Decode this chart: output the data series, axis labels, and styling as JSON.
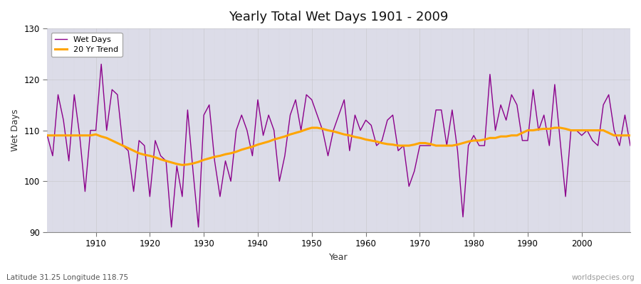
{
  "title": "Yearly Total Wet Days 1901 - 2009",
  "xlabel": "Year",
  "ylabel": "Wet Days",
  "subtitle_lat": "Latitude 31.25 Longitude 118.75",
  "watermark": "worldspecies.org",
  "line_color": "#8B008B",
  "trend_color": "#FFA500",
  "bg_color": "#DCDCE8",
  "fig_color": "#FFFFFF",
  "ylim": [
    90,
    130
  ],
  "xlim": [
    1901,
    2009
  ],
  "years": [
    1901,
    1902,
    1903,
    1904,
    1905,
    1906,
    1907,
    1908,
    1909,
    1910,
    1911,
    1912,
    1913,
    1914,
    1915,
    1916,
    1917,
    1918,
    1919,
    1920,
    1921,
    1922,
    1923,
    1924,
    1925,
    1926,
    1927,
    1928,
    1929,
    1930,
    1931,
    1932,
    1933,
    1934,
    1935,
    1936,
    1937,
    1938,
    1939,
    1940,
    1941,
    1942,
    1943,
    1944,
    1945,
    1946,
    1947,
    1948,
    1949,
    1950,
    1951,
    1952,
    1953,
    1954,
    1955,
    1956,
    1957,
    1958,
    1959,
    1960,
    1961,
    1962,
    1963,
    1964,
    1965,
    1966,
    1967,
    1968,
    1969,
    1970,
    1971,
    1972,
    1973,
    1974,
    1975,
    1976,
    1977,
    1978,
    1979,
    1980,
    1981,
    1982,
    1983,
    1984,
    1985,
    1986,
    1987,
    1988,
    1989,
    1990,
    1991,
    1992,
    1993,
    1994,
    1995,
    1996,
    1997,
    1998,
    1999,
    2000,
    2001,
    2002,
    2003,
    2004,
    2005,
    2006,
    2007,
    2008,
    2009
  ],
  "wet_days": [
    109,
    105,
    117,
    112,
    104,
    117,
    109,
    98,
    110,
    110,
    123,
    110,
    118,
    117,
    107,
    106,
    98,
    108,
    107,
    97,
    108,
    105,
    104,
    91,
    103,
    97,
    114,
    102,
    91,
    113,
    115,
    104,
    97,
    104,
    100,
    110,
    113,
    110,
    105,
    116,
    109,
    113,
    110,
    100,
    105,
    113,
    116,
    110,
    117,
    116,
    113,
    110,
    105,
    110,
    113,
    116,
    106,
    113,
    110,
    112,
    111,
    107,
    108,
    112,
    113,
    106,
    107,
    99,
    102,
    107,
    107,
    107,
    114,
    114,
    107,
    114,
    106,
    93,
    107,
    109,
    107,
    107,
    121,
    110,
    115,
    112,
    117,
    115,
    108,
    108,
    118,
    110,
    113,
    107,
    119,
    108,
    97,
    110,
    110,
    109,
    110,
    108,
    107,
    115,
    117,
    110,
    107,
    113,
    107
  ],
  "trend": [
    109.0,
    109.0,
    109.0,
    109.0,
    109.0,
    109.0,
    109.0,
    109.0,
    109.0,
    109.2,
    108.8,
    108.5,
    108.0,
    107.5,
    107.0,
    106.5,
    106.0,
    105.5,
    105.2,
    105.0,
    104.7,
    104.3,
    104.0,
    103.7,
    103.4,
    103.2,
    103.3,
    103.5,
    103.8,
    104.2,
    104.5,
    104.8,
    105.0,
    105.3,
    105.5,
    105.8,
    106.2,
    106.5,
    106.8,
    107.2,
    107.5,
    107.8,
    108.2,
    108.5,
    108.8,
    109.2,
    109.5,
    109.8,
    110.2,
    110.5,
    110.5,
    110.3,
    110.0,
    109.8,
    109.5,
    109.2,
    109.0,
    108.7,
    108.5,
    108.2,
    108.0,
    107.8,
    107.5,
    107.3,
    107.2,
    107.0,
    107.0,
    107.0,
    107.2,
    107.5,
    107.5,
    107.3,
    107.0,
    107.0,
    107.0,
    107.0,
    107.2,
    107.5,
    107.8,
    108.0,
    108.0,
    108.2,
    108.5,
    108.5,
    108.8,
    108.8,
    109.0,
    109.0,
    109.5,
    110.0,
    110.0,
    110.2,
    110.3,
    110.3,
    110.5,
    110.5,
    110.3,
    110.0,
    110.0,
    110.0,
    110.0,
    110.0,
    110.0,
    110.0,
    109.5,
    109.0,
    109.0,
    109.0,
    109.0
  ]
}
